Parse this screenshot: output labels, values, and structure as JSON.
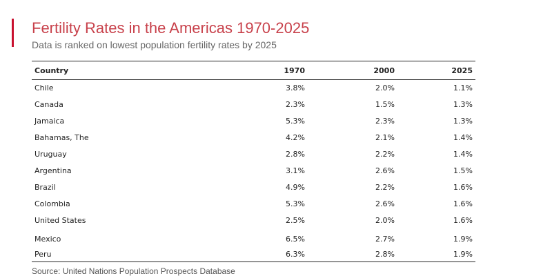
{
  "header": {
    "title": "Fertility Rates in the Americas 1970-2025",
    "subtitle": "Data is ranked on lowest population fertility rates by 2025"
  },
  "footer": {
    "source": "Source: United Nations Population Prospects Database"
  },
  "colors": {
    "accent": "#c8102e",
    "title": "#c8414b"
  },
  "chart_data": {
    "type": "table",
    "title": "Fertility Rates in the Americas 1970-2025",
    "columns": [
      "Country",
      "1970",
      "2000",
      "2025"
    ],
    "rows": [
      [
        "Chile",
        "3.8%",
        "2.0%",
        "1.1%"
      ],
      [
        "Canada",
        "2.3%",
        "1.5%",
        "1.3%"
      ],
      [
        "Jamaica",
        "5.3%",
        "2.3%",
        "1.3%"
      ],
      [
        "Bahamas, The",
        "4.2%",
        "2.1%",
        "1.4%"
      ],
      [
        "Uruguay",
        "2.8%",
        "2.2%",
        "1.4%"
      ],
      [
        "Argentina",
        "3.1%",
        "2.6%",
        "1.5%"
      ],
      [
        "Brazil",
        "4.9%",
        "2.2%",
        "1.6%"
      ],
      [
        "Colombia",
        "5.3%",
        "2.6%",
        "1.6%"
      ],
      [
        "United States",
        "2.5%",
        "2.0%",
        "1.6%"
      ],
      [
        "Mexico",
        "6.5%",
        "2.7%",
        "1.9%"
      ],
      [
        "Peru",
        "6.3%",
        "2.8%",
        "1.9%"
      ]
    ]
  }
}
